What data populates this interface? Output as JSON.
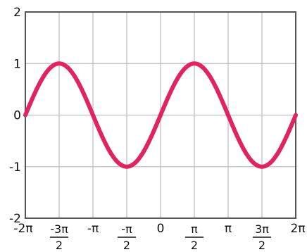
{
  "chart_data": {
    "type": "line",
    "title": "",
    "xlabel": "",
    "ylabel": "",
    "xlim": [
      -6.2832,
      6.2832
    ],
    "ylim": [
      -2,
      2
    ],
    "grid": true,
    "legend": "none",
    "x_ticks": [
      {
        "value": -6.2832,
        "label": "-2π"
      },
      {
        "value": -4.7124,
        "num": "-3π",
        "den": "2"
      },
      {
        "value": -3.1416,
        "label": "-π"
      },
      {
        "value": -1.5708,
        "num": "-π",
        "den": "2"
      },
      {
        "value": 0,
        "label": "0"
      },
      {
        "value": 1.5708,
        "num": "π",
        "den": "2"
      },
      {
        "value": 3.1416,
        "label": "π"
      },
      {
        "value": 4.7124,
        "num": "3π",
        "den": "2"
      },
      {
        "value": 6.2832,
        "label": "2π"
      }
    ],
    "y_ticks": [
      {
        "value": 2,
        "label": "2"
      },
      {
        "value": 1,
        "label": "1"
      },
      {
        "value": 0,
        "label": "0"
      },
      {
        "value": -1,
        "label": "-1"
      },
      {
        "value": -2,
        "label": "-2"
      }
    ],
    "series": [
      {
        "function": "sin",
        "color": "#e0245e",
        "x": [
          -6.2832,
          -4.7124,
          -3.1416,
          -1.5708,
          0,
          1.5708,
          3.1416,
          4.7124,
          6.2832
        ],
        "y": [
          0,
          1,
          0,
          -1,
          0,
          1,
          0,
          -1,
          0
        ]
      }
    ],
    "colors": {
      "grid": "#bbbbbb",
      "frame": "#555555",
      "line": "#e0245e"
    }
  }
}
